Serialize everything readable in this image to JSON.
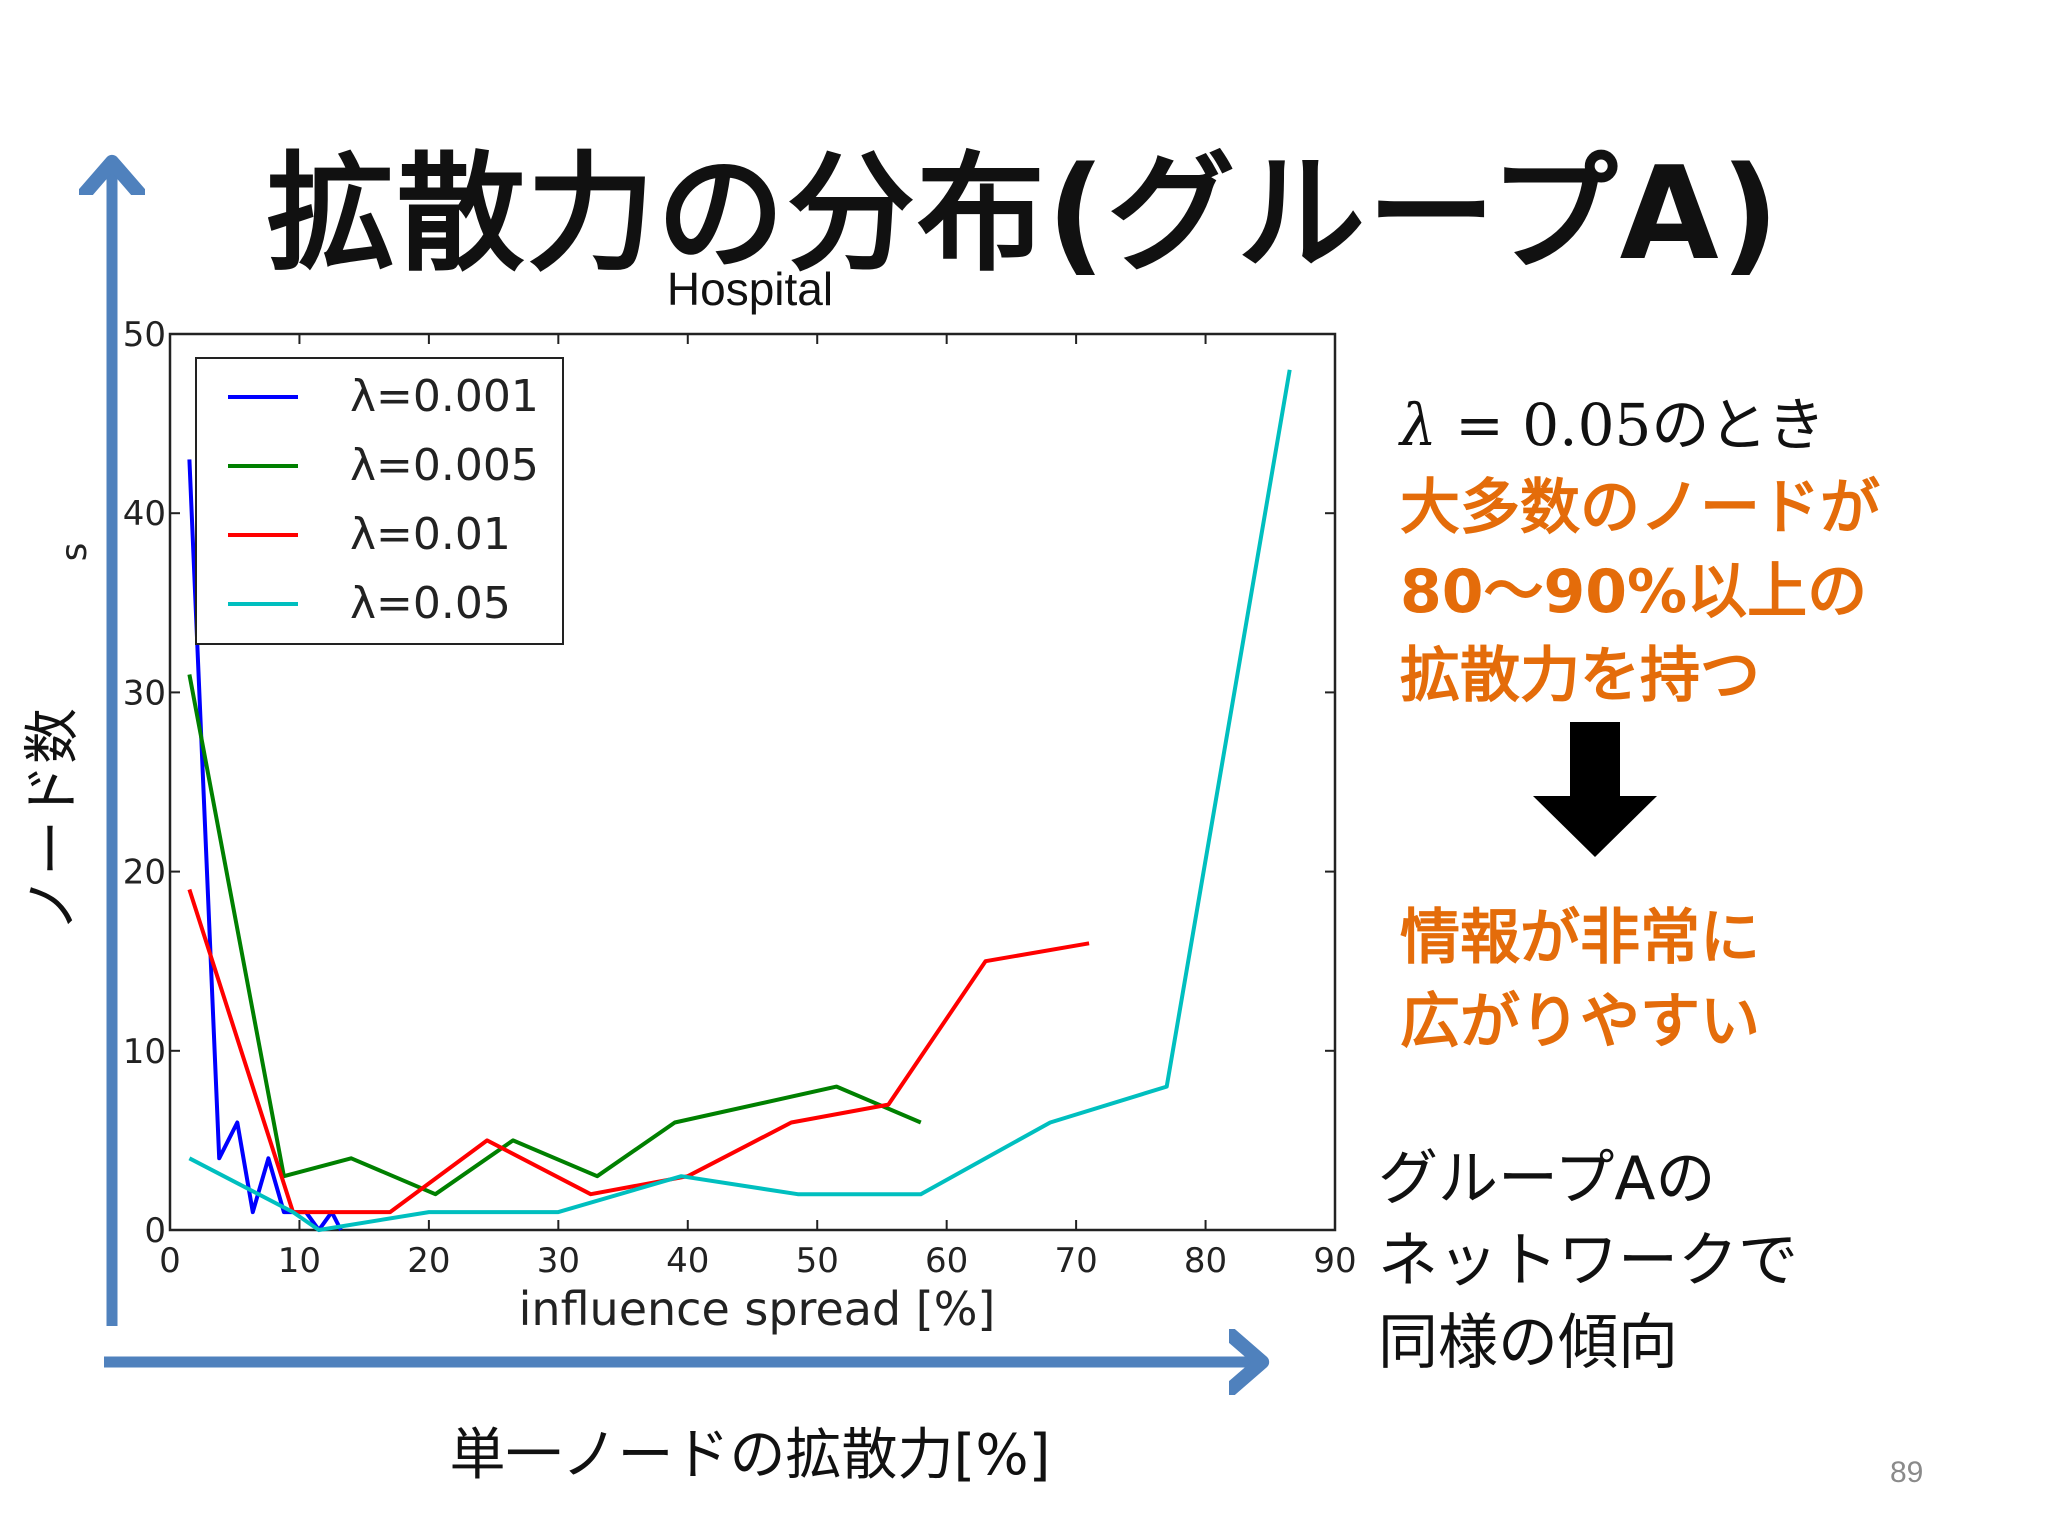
{
  "slide": {
    "title": "拡散力の分布(グループA)",
    "page_number": "89"
  },
  "side_text": {
    "equation_lambda": "λ",
    "equation_rest": " = 0.05",
    "equation_suffix": "のとき",
    "highlight_lines": [
      "大多数のノードが",
      "80〜90%以上の",
      "拡散力を持つ"
    ],
    "conclusion_lines": [
      "情報が非常に",
      "広がりやすい"
    ],
    "note_lines": [
      "グループAの",
      "ネットワークで",
      "同様の傾向"
    ]
  },
  "axis_captions": {
    "x": "単一ノードの拡散力[%]",
    "y": "ノード数"
  },
  "colors": {
    "arrow_blue": "#4F81BD",
    "orange_text": "#E46C0A"
  },
  "chart_data": {
    "type": "line",
    "title": "Hospital",
    "xlabel": "influence spread [%]",
    "ylabel": "s",
    "xlim": [
      0,
      90
    ],
    "ylim": [
      0,
      50
    ],
    "x_ticks": [
      0,
      10,
      20,
      30,
      40,
      50,
      60,
      70,
      80,
      90
    ],
    "y_ticks": [
      0,
      10,
      20,
      30,
      40,
      50
    ],
    "legend_position": "upper-left",
    "grid": false,
    "series": [
      {
        "name": "λ=0.001",
        "color": "#0000ff",
        "points": [
          [
            1.5,
            43
          ],
          [
            3.8,
            4
          ],
          [
            5.2,
            6
          ],
          [
            6.4,
            1
          ],
          [
            7.6,
            4
          ],
          [
            8.8,
            1
          ],
          [
            10.5,
            1
          ],
          [
            11.5,
            0
          ],
          [
            12.5,
            1
          ],
          [
            13.2,
            0
          ]
        ]
      },
      {
        "name": "λ=0.005",
        "color": "#008000",
        "points": [
          [
            1.5,
            31
          ],
          [
            8.8,
            3
          ],
          [
            14,
            4
          ],
          [
            20.5,
            2
          ],
          [
            26.5,
            5
          ],
          [
            33,
            3
          ],
          [
            39,
            6
          ],
          [
            51.5,
            8
          ],
          [
            58,
            6
          ]
        ]
      },
      {
        "name": "λ=0.01",
        "color": "#ff0000",
        "points": [
          [
            1.5,
            19
          ],
          [
            9.5,
            1
          ],
          [
            17,
            1
          ],
          [
            24.5,
            5
          ],
          [
            32.5,
            2
          ],
          [
            40,
            3
          ],
          [
            48,
            6
          ],
          [
            55.5,
            7
          ],
          [
            63,
            15
          ],
          [
            71,
            16
          ]
        ]
      },
      {
        "name": "λ=0.05",
        "color": "#00bfbf",
        "points": [
          [
            1.5,
            4
          ],
          [
            9.5,
            1
          ],
          [
            11.5,
            0
          ],
          [
            20,
            1
          ],
          [
            30,
            1
          ],
          [
            39.5,
            3
          ],
          [
            48.5,
            2
          ],
          [
            58,
            2
          ],
          [
            68,
            6
          ],
          [
            77,
            8
          ],
          [
            86.5,
            48
          ]
        ]
      }
    ]
  }
}
